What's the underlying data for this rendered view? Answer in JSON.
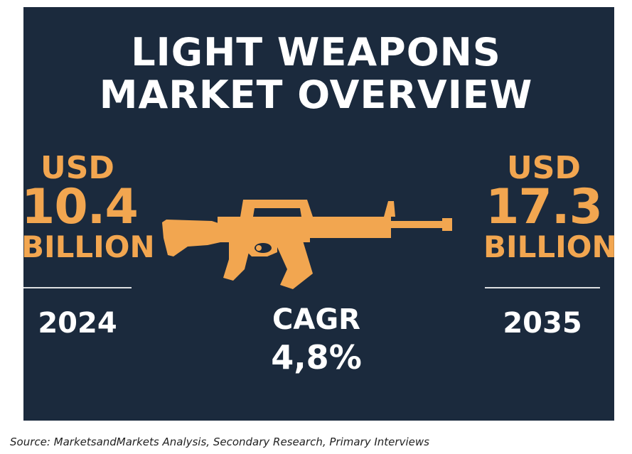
{
  "title": {
    "line1": "LIGHT WEAPONS",
    "line2": "MARKET OVERVIEW"
  },
  "left_value": {
    "currency": "USD",
    "amount": "10.4",
    "unit": "BILLION",
    "year": "2024"
  },
  "right_value": {
    "currency": "USD",
    "amount": "17.3",
    "unit": "BILLION",
    "year": "2035"
  },
  "cagr": {
    "label": "CAGR",
    "value": "4,8%"
  },
  "icon": "rifle-icon",
  "colors": {
    "background": "#1b2a3d",
    "accent": "#f2a650",
    "text": "#ffffff"
  },
  "source": "Source: MarketsandMarkets Analysis, Secondary Research, Primary Interviews"
}
